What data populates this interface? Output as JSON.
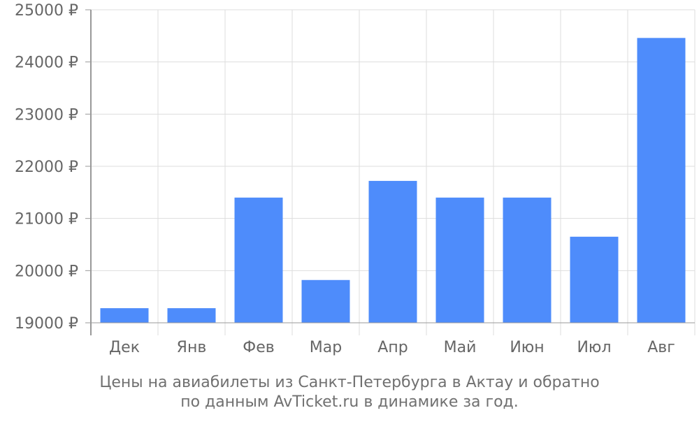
{
  "chart_data": {
    "type": "bar",
    "categories": [
      "Дек",
      "Янв",
      "Фев",
      "Мар",
      "Апр",
      "Май",
      "Июн",
      "Июл",
      "Авг"
    ],
    "values": [
      19280,
      19280,
      21400,
      19820,
      21720,
      21400,
      21400,
      20650,
      24460
    ],
    "ylim": [
      19000,
      25000
    ],
    "yticks": [
      19000,
      20000,
      21000,
      22000,
      23000,
      24000,
      25000
    ],
    "ytick_suffix": " ₽",
    "grid": true,
    "colors": {
      "bar": "#4e8cfb",
      "grid": "#dddddd",
      "axis": "#999999",
      "text": "#666666"
    }
  },
  "caption": {
    "line1": "Цены на авиабилеты из Санкт-Петербурга в Актау и обратно",
    "line2": "по данным AvTicket.ru в динамике за год."
  }
}
